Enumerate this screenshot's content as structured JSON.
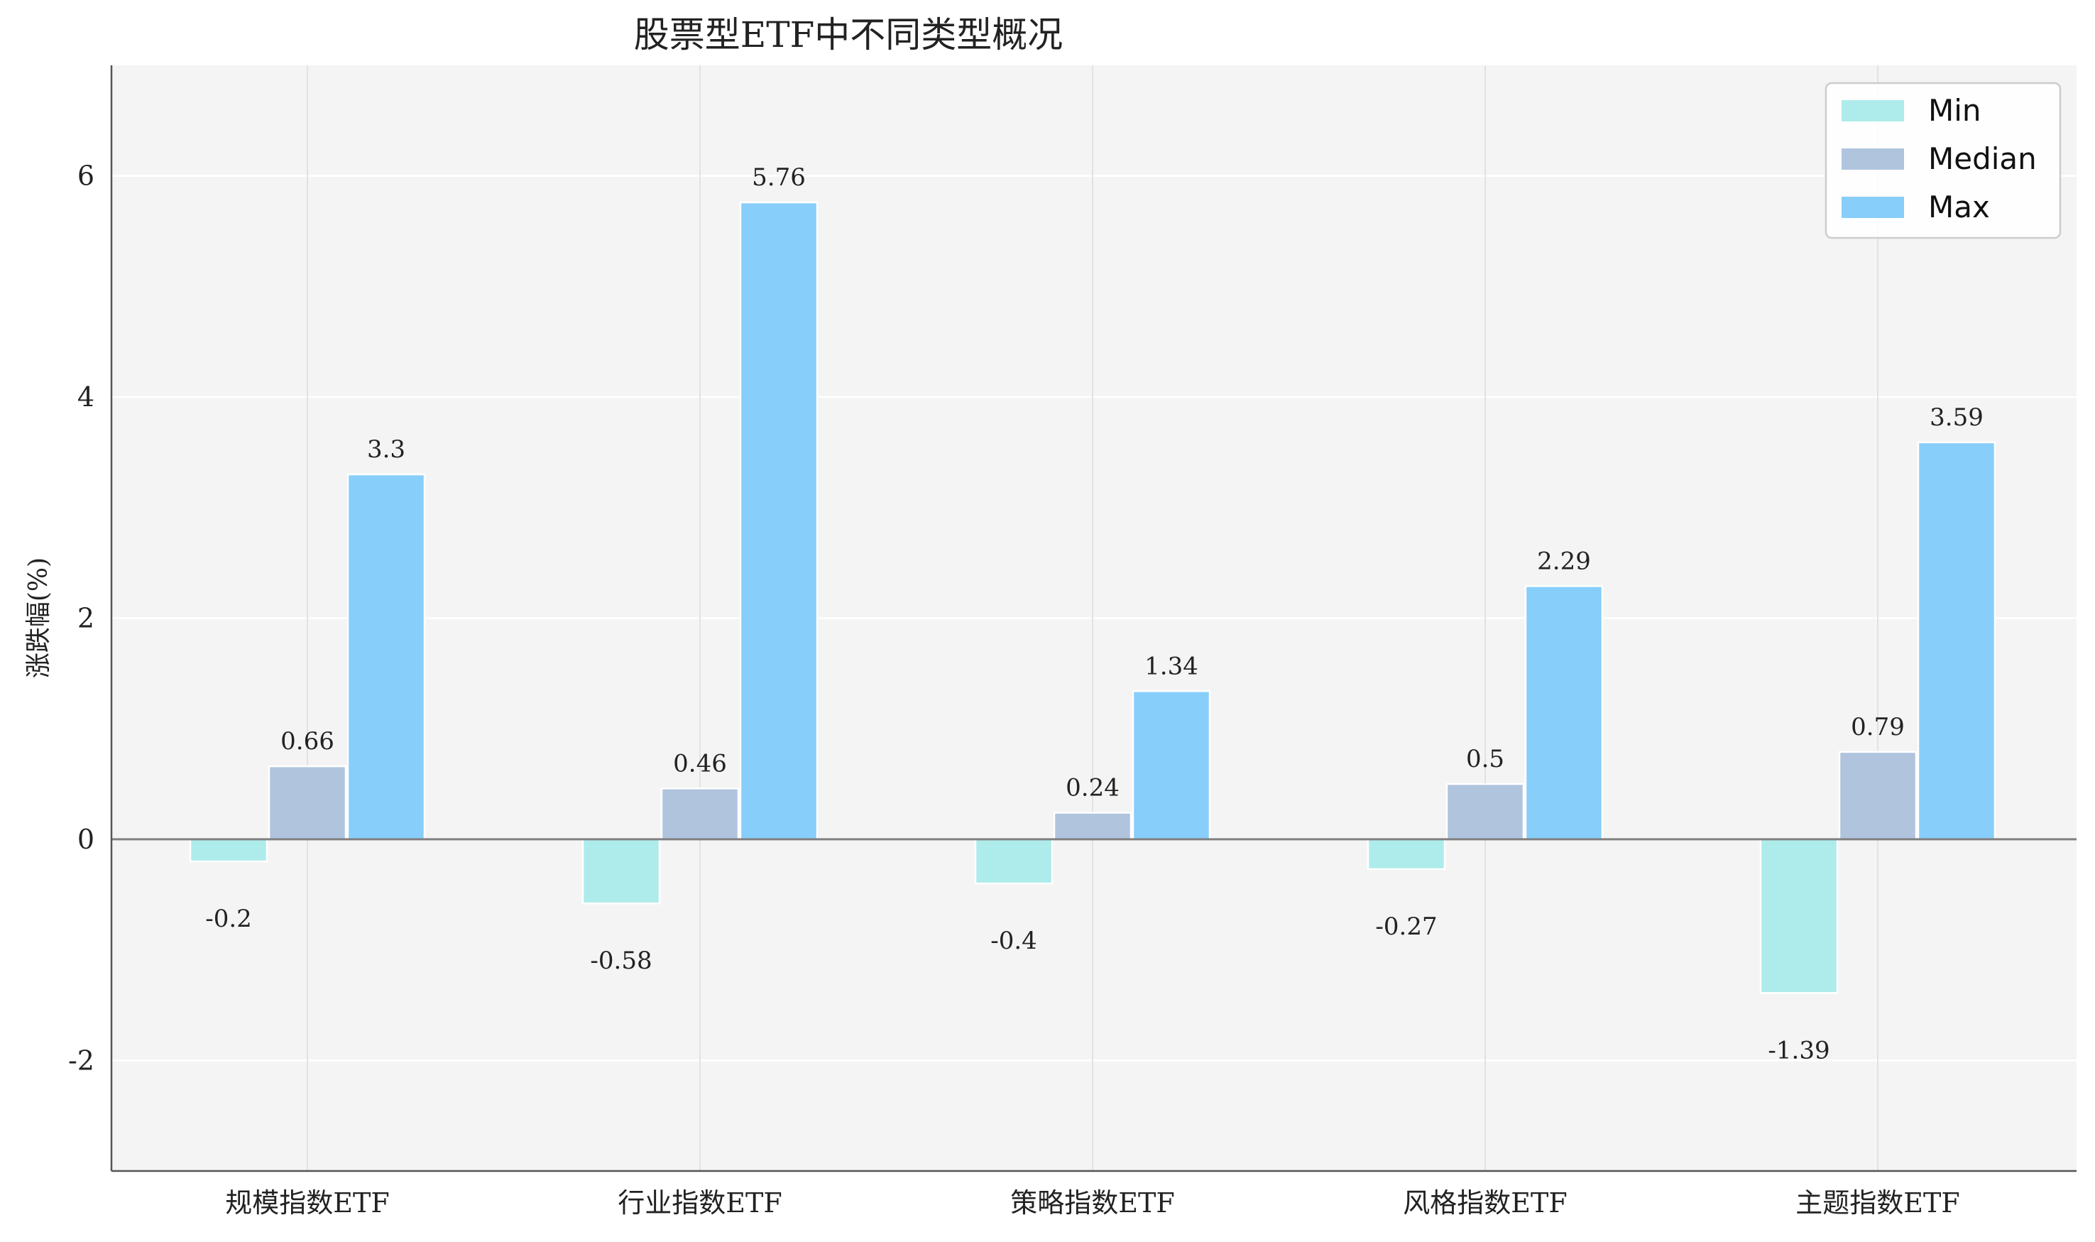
{
  "chart_data": {
    "type": "bar",
    "title": "股票型ETF中不同类型概况",
    "xlabel": "",
    "ylabel": "涨跌幅(%)",
    "categories": [
      "规模指数ETF",
      "行业指数ETF",
      "策略指数ETF",
      "风格指数ETF",
      "主题指数ETF"
    ],
    "series": [
      {
        "name": "Min",
        "color": "#aeeceb",
        "values": [
          -0.2,
          -0.58,
          -0.4,
          -0.27,
          -1.39
        ]
      },
      {
        "name": "Median",
        "color": "#b0c4de",
        "values": [
          0.66,
          0.46,
          0.24,
          0.5,
          0.79
        ]
      },
      {
        "name": "Max",
        "color": "#87cefa",
        "values": [
          3.3,
          5.76,
          1.34,
          2.29,
          3.59
        ]
      }
    ],
    "ylim": [
      -3,
      7
    ],
    "yticks": [
      -2,
      0,
      2,
      4,
      6
    ],
    "grid": true,
    "legend_position": "top-right",
    "background": "#f4f4f4"
  }
}
